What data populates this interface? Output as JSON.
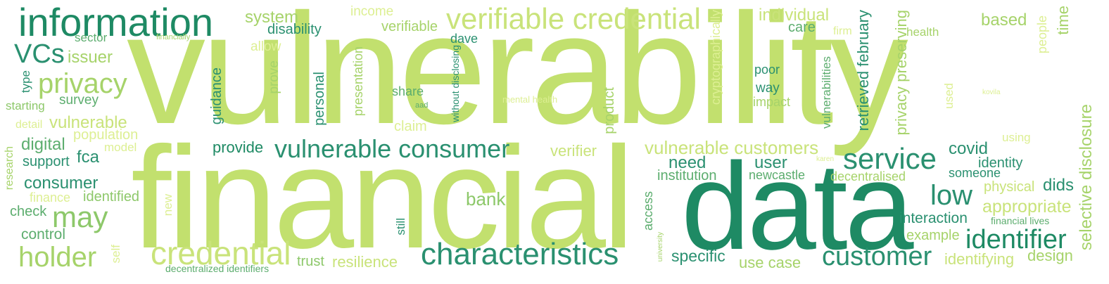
{
  "palette": {
    "dark_green": "#1e8a64",
    "teal": "#2a9070",
    "mid_green": "#5cad6e",
    "light_green": "#a6d36a",
    "lime": "#c2e06e",
    "pale_yellow": "#ddef93",
    "yellow": "#f0f2a4"
  },
  "words": [
    {
      "text": "vulnerability",
      "color": "#c2e06e"
    },
    {
      "text": "financial",
      "color": "#c2e06e"
    },
    {
      "text": "data",
      "color": "#1e8a64"
    },
    {
      "text": "information",
      "color": "#1e8a64"
    },
    {
      "text": "verifiable credential",
      "color": "#c9e37a"
    },
    {
      "text": "credential",
      "color": "#c9e37a"
    },
    {
      "text": "characteristics",
      "color": "#2a9070"
    },
    {
      "text": "vulnerable consumer",
      "color": "#2a9070"
    },
    {
      "text": "service",
      "color": "#2a9070"
    },
    {
      "text": "customer",
      "color": "#2a9070"
    },
    {
      "text": "identifier",
      "color": "#1e8a64"
    },
    {
      "text": "vulnerable customers",
      "color": "#c9e37a"
    },
    {
      "text": "holder",
      "color": "#a6d36a"
    },
    {
      "text": "may",
      "color": "#8dc86a"
    },
    {
      "text": "privacy",
      "color": "#a6d36a"
    },
    {
      "text": "VCs",
      "color": "#2a9070"
    },
    {
      "text": "low",
      "color": "#2a9070"
    },
    {
      "text": "bank",
      "color": "#8dc86a"
    },
    {
      "text": "appropriate",
      "color": "#c9e37a"
    },
    {
      "text": "resilience",
      "color": "#c9e37a"
    },
    {
      "text": "digital",
      "color": "#5cad6e"
    },
    {
      "text": "consumer",
      "color": "#2a9070"
    },
    {
      "text": "vulnerable",
      "color": "#c9e37a"
    },
    {
      "text": "issuer",
      "color": "#a6d36a"
    },
    {
      "text": "provide",
      "color": "#1e8a64"
    },
    {
      "text": "verifier",
      "color": "#c9e37a"
    },
    {
      "text": "need",
      "color": "#2a9070"
    },
    {
      "text": "user",
      "color": "#2a9070"
    },
    {
      "text": "covid",
      "color": "#2a9070"
    },
    {
      "text": "identity",
      "color": "#2a9070"
    },
    {
      "text": "someone",
      "color": "#2a9070"
    },
    {
      "text": "institution",
      "color": "#5cad6e"
    },
    {
      "text": "newcastle",
      "color": "#5cad6e"
    },
    {
      "text": "decentralised",
      "color": "#a6d36a"
    },
    {
      "text": "physical",
      "color": "#c9e37a"
    },
    {
      "text": "dids",
      "color": "#2a9070"
    },
    {
      "text": "interaction",
      "color": "#2a9070"
    },
    {
      "text": "financial lives",
      "color": "#5cad6e"
    },
    {
      "text": "example",
      "color": "#a6d36a"
    },
    {
      "text": "identifying",
      "color": "#c9e37a"
    },
    {
      "text": "design",
      "color": "#a6d36a"
    },
    {
      "text": "use case",
      "color": "#a6d36a"
    },
    {
      "text": "specific",
      "color": "#2a9070"
    },
    {
      "text": "trust",
      "color": "#8dc86a"
    },
    {
      "text": "decentralized identifiers",
      "color": "#5cad6e"
    },
    {
      "text": "control",
      "color": "#5cad6e"
    },
    {
      "text": "check",
      "color": "#5cad6e"
    },
    {
      "text": "finance",
      "color": "#ddef93"
    },
    {
      "text": "identified",
      "color": "#8dc86a"
    },
    {
      "text": "support",
      "color": "#2a9070"
    },
    {
      "text": "fca",
      "color": "#2a9070"
    },
    {
      "text": "model",
      "color": "#ddef93"
    },
    {
      "text": "population",
      "color": "#ddef93"
    },
    {
      "text": "detail",
      "color": "#ddef93"
    },
    {
      "text": "survey",
      "color": "#5cad6e"
    },
    {
      "text": "starting",
      "color": "#8dc86a"
    },
    {
      "text": "sector",
      "color": "#5cad6e"
    },
    {
      "text": "system",
      "color": "#a6d36a"
    },
    {
      "text": "disability",
      "color": "#2a9070"
    },
    {
      "text": "allow",
      "color": "#ddef93"
    },
    {
      "text": "income",
      "color": "#ddef93"
    },
    {
      "text": "verifiable",
      "color": "#a6d36a"
    },
    {
      "text": "dave",
      "color": "#2a9070"
    },
    {
      "text": "individual",
      "color": "#c9e37a"
    },
    {
      "text": "care",
      "color": "#5cad6e"
    },
    {
      "text": "firm",
      "color": "#ddef93"
    },
    {
      "text": "health",
      "color": "#a6d36a"
    },
    {
      "text": "based",
      "color": "#a6d36a"
    },
    {
      "text": "poor",
      "color": "#2a9070"
    },
    {
      "text": "way",
      "color": "#2a9070"
    },
    {
      "text": "impact",
      "color": "#a6d36a"
    },
    {
      "text": "share",
      "color": "#5cad6e"
    },
    {
      "text": "claim",
      "color": "#ddef93"
    },
    {
      "text": "mental health",
      "color": "#ddef93"
    },
    {
      "text": "aad",
      "color": "#5cad6e"
    },
    {
      "text": "financially",
      "color": "#a6d36a"
    },
    {
      "text": "using",
      "color": "#ddef93"
    },
    {
      "text": "karen",
      "color": "#ddef93"
    },
    {
      "text": "kovila",
      "color": "#ddef93"
    },
    {
      "text": "time",
      "color": "#a6d36a",
      "vertical": true
    },
    {
      "text": "people",
      "color": "#ddef93",
      "vertical": true
    },
    {
      "text": "used",
      "color": "#ddef93",
      "vertical": true
    },
    {
      "text": "selective disclosure",
      "color": "#a6d36a",
      "vertical": true
    },
    {
      "text": "retrieved february",
      "color": "#2a9070",
      "vertical": true
    },
    {
      "text": "privacy preserving",
      "color": "#a6d36a",
      "vertical": true
    },
    {
      "text": "vulnerabilities",
      "color": "#5cad6e",
      "vertical": true
    },
    {
      "text": "cryptographically",
      "color": "#ddef93",
      "vertical": true
    },
    {
      "text": "product",
      "color": "#a6d36a",
      "vertical": true
    },
    {
      "text": "without disclosing",
      "color": "#2a9070",
      "vertical": true
    },
    {
      "text": "presentation",
      "color": "#a6d36a",
      "vertical": true
    },
    {
      "text": "personal",
      "color": "#2a9070",
      "vertical": true
    },
    {
      "text": "prove",
      "color": "#a6d36a",
      "vertical": true
    },
    {
      "text": "guidance",
      "color": "#2a9070",
      "vertical": true
    },
    {
      "text": "type",
      "color": "#2a9070",
      "vertical": true
    },
    {
      "text": "research",
      "color": "#a6d36a",
      "vertical": true
    },
    {
      "text": "new",
      "color": "#ddef93",
      "vertical": true
    },
    {
      "text": "self",
      "color": "#ddef93",
      "vertical": true
    },
    {
      "text": "still",
      "color": "#2a9070",
      "vertical": true
    },
    {
      "text": "access",
      "color": "#5cad6e",
      "vertical": true
    },
    {
      "text": "university",
      "color": "#a6d36a",
      "vertical": true
    }
  ]
}
